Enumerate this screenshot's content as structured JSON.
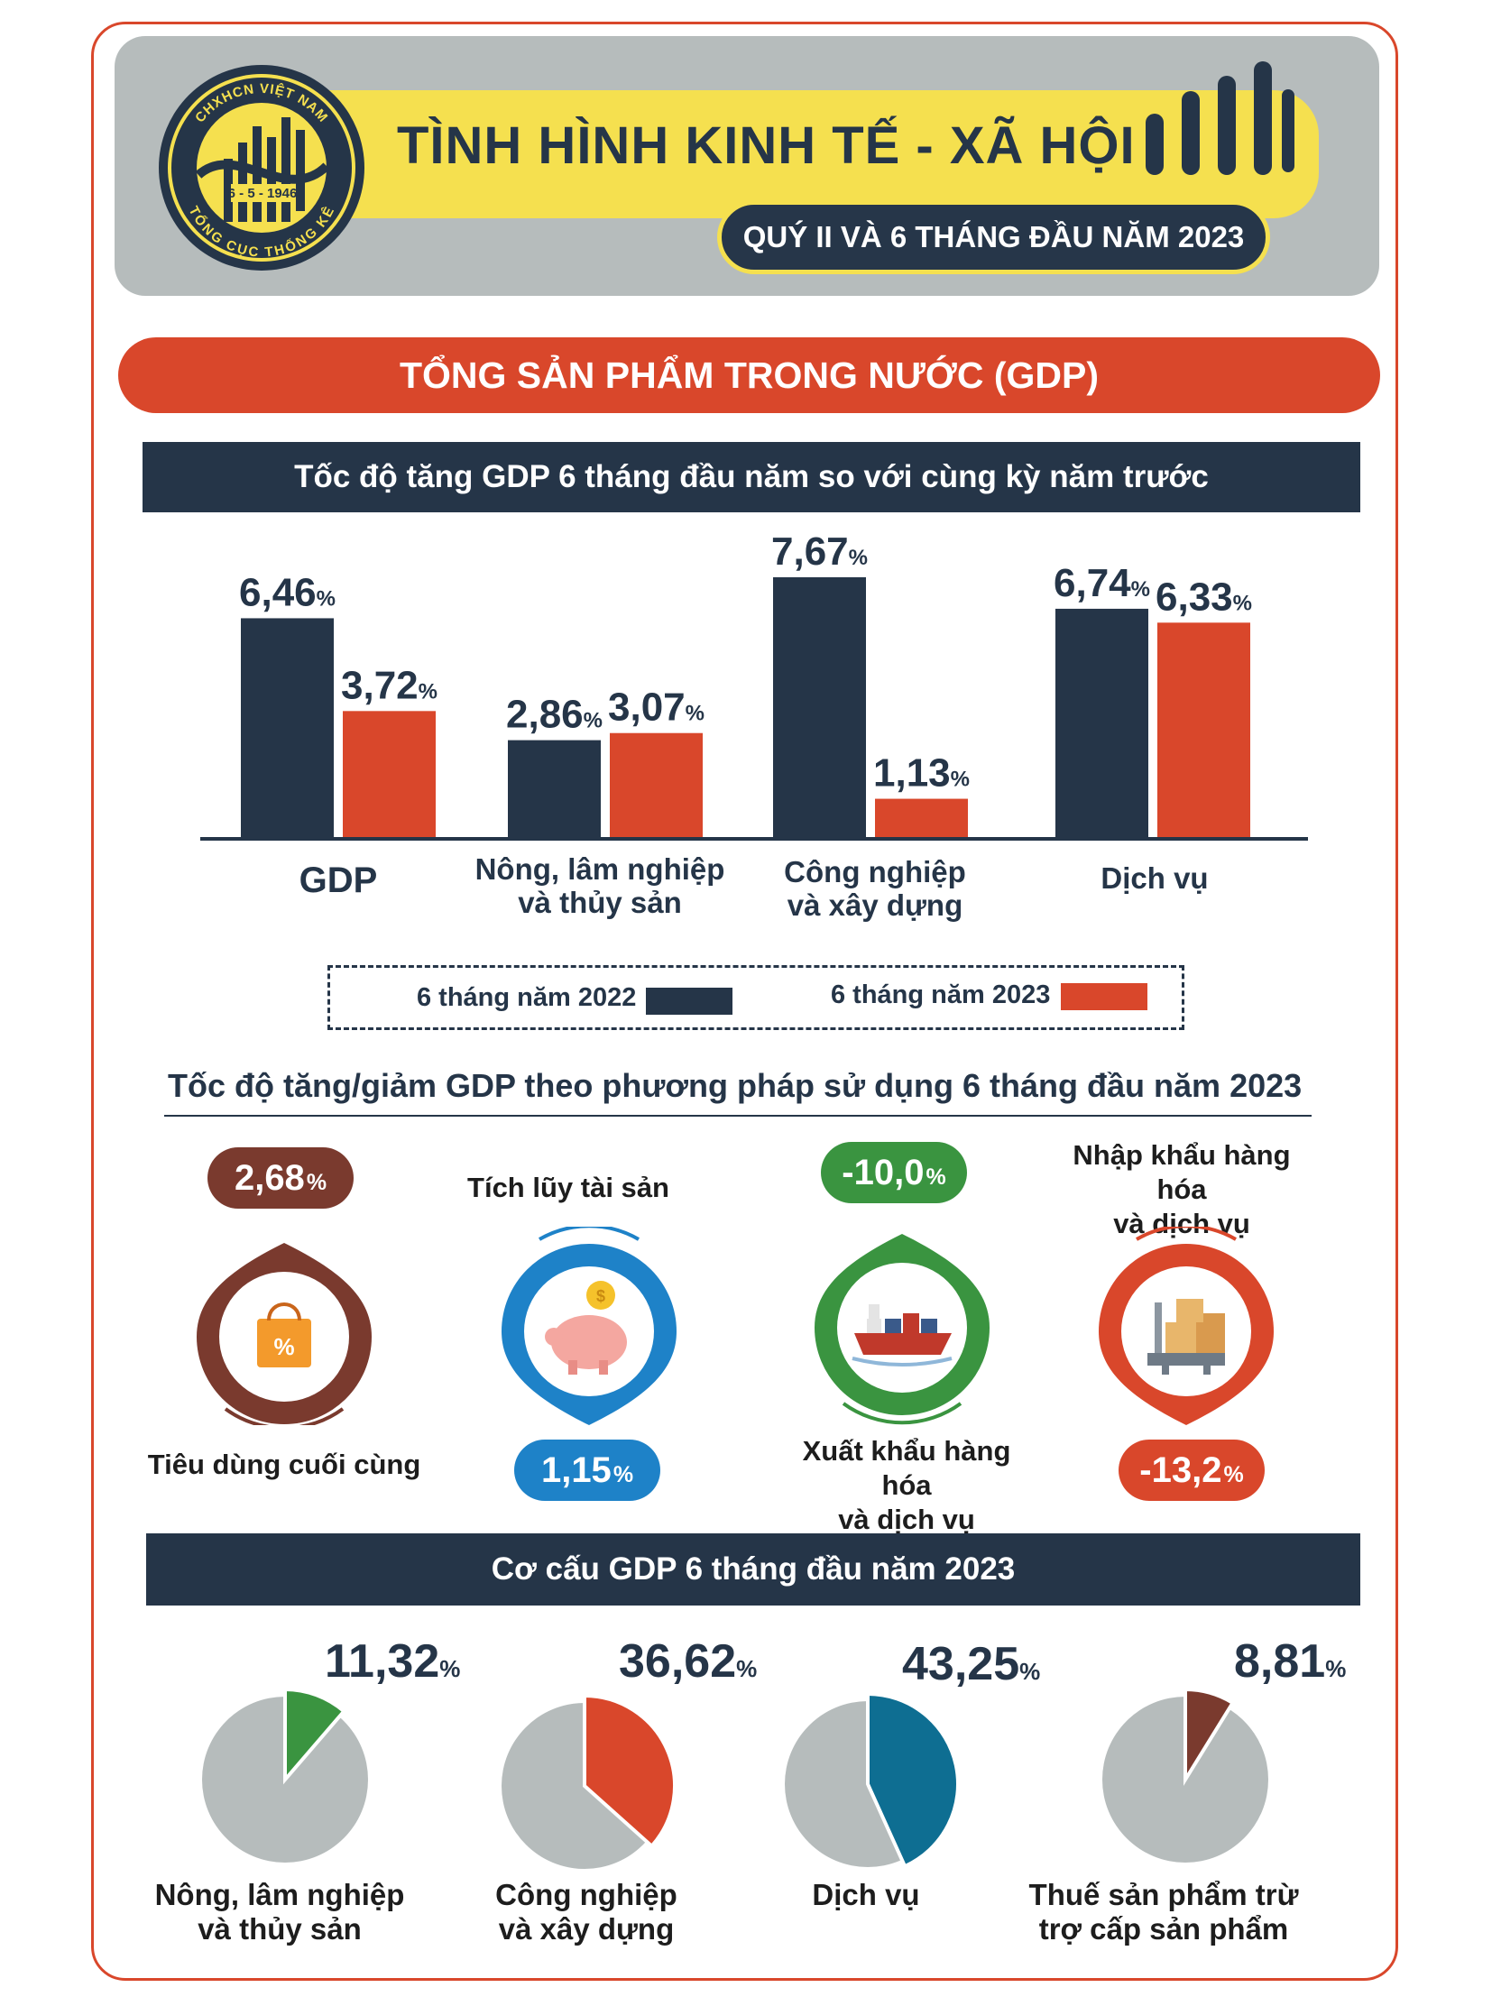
{
  "header": {
    "logo": {
      "top_text": "CHXHCN VIỆT NAM",
      "date": "6 - 5 - 1946",
      "bottom_text": "TỔNG CỤC THỐNG KÊ"
    },
    "title": "TÌNH HÌNH KINH TẾ - XÃ HỘI",
    "subtitle": "QUÝ II VÀ 6 THÁNG ĐẦU NĂM 2023"
  },
  "gdp_banner": "TỔNG SẢN PHẨM TRONG NƯỚC (GDP)",
  "section1_title": "Tốc độ tăng GDP 6 tháng đầu năm so với cùng kỳ năm trước",
  "section2_title": "Tốc độ tăng/giảm GDP theo phương pháp sử dụng 6 tháng đầu năm 2023",
  "section3_title": "Cơ cấu GDP 6 tháng đầu năm 2023",
  "legend": {
    "s2022": "6 tháng năm 2022",
    "s2023": "6 tháng năm 2023"
  },
  "colors": {
    "navy": "#253548",
    "red": "#d9472b",
    "brown": "#7a3a2e",
    "blue": "#1e82c8",
    "green": "#3a9440",
    "grey": "#b6bcbc",
    "teal": "#0e6e92"
  },
  "usage": {
    "consumption": {
      "value": "2,68",
      "unit": "%",
      "label_line1": "Tiêu dùng cuối cùng",
      "icon": "shopping-bag-icon"
    },
    "accumulation": {
      "value": "1,15",
      "unit": "%",
      "label_line1": "Tích lũy tài sản",
      "icon": "piggy-bank-icon"
    },
    "export": {
      "value": "-10,0",
      "unit": "%",
      "label_line1": "Xuất khẩu hàng hóa",
      "label_line2": "và dịch vụ",
      "icon": "cargo-ship-icon"
    },
    "import": {
      "value": "-13,2",
      "unit": "%",
      "label_line1": "Nhập khẩu hàng hóa",
      "label_line2": "và dịch vụ",
      "icon": "scale-boxes-icon"
    }
  },
  "pies": [
    {
      "value": "11,32",
      "unit": "%",
      "line1": "Nông, lâm nghiệp",
      "line2": "và thủy sản"
    },
    {
      "value": "36,62",
      "unit": "%",
      "line1": "Công nghiệp",
      "line2": "và xây dựng"
    },
    {
      "value": "43,25",
      "unit": "%",
      "line1": "Dịch vụ",
      "line2": ""
    },
    {
      "value": "8,81",
      "unit": "%",
      "line1": "Thuế sản phẩm trừ",
      "line2": "trợ cấp sản phẩm"
    }
  ],
  "chart_data": [
    {
      "type": "bar",
      "title": "Tốc độ tăng GDP 6 tháng đầu năm so với cùng kỳ năm trước",
      "categories": [
        "GDP",
        "Nông, lâm nghiệp\nvà thủy sản",
        "Công nghiệp\nvà xây dựng",
        "Dịch vụ"
      ],
      "series": [
        {
          "name": "6 tháng năm 2022",
          "values": [
            6.46,
            2.86,
            7.67,
            6.74
          ],
          "labels": [
            "6,46",
            "2,86",
            "7,67",
            "6,74"
          ]
        },
        {
          "name": "6 tháng năm 2023",
          "values": [
            3.72,
            3.07,
            1.13,
            6.33
          ],
          "labels": [
            "3,72",
            "3,07",
            "1,13",
            "6,33"
          ]
        }
      ],
      "unit": "%",
      "xlabel": "",
      "ylabel": "",
      "ylim": [
        0,
        7.67
      ],
      "legend": "bottom"
    },
    {
      "type": "pie",
      "title": "Cơ cấu GDP 6 tháng đầu năm 2023",
      "categories": [
        "Nông, lâm nghiệp và thủy sản",
        "Công nghiệp và xây dựng",
        "Dịch vụ",
        "Thuế sản phẩm trừ trợ cấp sản phẩm"
      ],
      "values": [
        11.32,
        36.62,
        43.25,
        8.81
      ],
      "unit": "%"
    }
  ]
}
